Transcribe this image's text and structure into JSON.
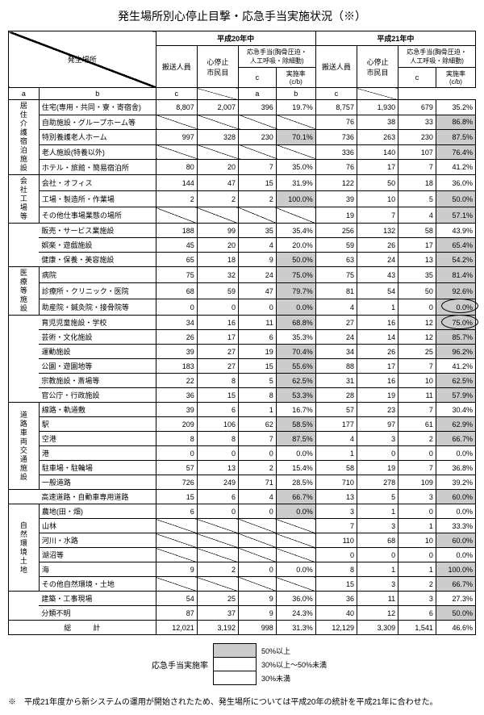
{
  "title": "発生場所別心停止目撃・応急手当実施状況（※）",
  "periods": [
    "平成20年中",
    "平成21年中"
  ],
  "subheads": {
    "a": "搬送人員",
    "b": "心停止\n市民目",
    "c": "応急手当(胸骨圧迫・\n人工呼吸・除細動)",
    "rate": "実施率\n(c/b)"
  },
  "labels": {
    "a": "a",
    "b": "b",
    "c": "c"
  },
  "loc_header": "発生場所",
  "total_label": "総　　　計",
  "legend_title": "応急手当実施率",
  "legend": [
    {
      "label": "50%以上",
      "fill": "#ccc"
    },
    {
      "label": "30%以上～50%未満",
      "fill": "#fff"
    },
    {
      "label": "30%未満",
      "fill": "#fff"
    }
  ],
  "footnote": "※　平成21年度から新システムの運用が開始されたため、発生場所については平成20年の統計を平成21年に合わせた。",
  "groups": [
    {
      "cat": "居住\n介護\n宿泊施設",
      "rows": [
        {
          "name": "住宅(専用・共同・寮・寄宿舎)",
          "y20": [
            8807,
            2007,
            396,
            19.7,
            false
          ],
          "y21": [
            8757,
            1930,
            679,
            35.2,
            false
          ]
        },
        {
          "name": "自助施設・グループホーム等",
          "y20": null,
          "y21": [
            76,
            38,
            33,
            86.8,
            true
          ]
        },
        {
          "name": "特別養護老人ホーム",
          "y20": [
            997,
            328,
            230,
            70.1,
            true
          ],
          "y21": [
            736,
            263,
            230,
            87.5,
            true
          ]
        },
        {
          "name": "老人施設(特養以外)",
          "y20": null,
          "y21": [
            336,
            140,
            107,
            76.4,
            true
          ]
        },
        {
          "name": "ホテル・旅館・簡易宿泊所",
          "y20": [
            80,
            20,
            7,
            35.0,
            false
          ],
          "y21": [
            76,
            17,
            7,
            41.2,
            false
          ]
        }
      ]
    },
    {
      "cat": "会社\n工場等",
      "rows": [
        {
          "name": "会社・オフィス",
          "y20": [
            144,
            47,
            15,
            31.9,
            false
          ],
          "y21": [
            122,
            50,
            18,
            36.0,
            false
          ]
        },
        {
          "name": "工場・製造所・作業場",
          "y20": [
            2,
            2,
            2,
            100.0,
            true
          ],
          "y21": [
            39,
            10,
            5,
            50.0,
            true
          ]
        },
        {
          "name": "その他仕事場業態の場所",
          "y20": null,
          "y21": [
            19,
            7,
            4,
            57.1,
            true
          ]
        }
      ]
    },
    {
      "cat": null,
      "rows": [
        {
          "name": "販売・サービス業施設",
          "y20": [
            188,
            99,
            35,
            35.4,
            false
          ],
          "y21": [
            256,
            132,
            58,
            43.9,
            false
          ]
        },
        {
          "name": "娯楽・遊戯施設",
          "y20": [
            45,
            20,
            4,
            20.0,
            false
          ],
          "y21": [
            59,
            26,
            17,
            65.4,
            true
          ]
        },
        {
          "name": "健康・保養・美容施設",
          "y20": [
            65,
            18,
            9,
            50.0,
            true
          ],
          "y21": [
            63,
            24,
            13,
            54.2,
            true
          ]
        }
      ]
    },
    {
      "cat": "医療等\n施設",
      "rows": [
        {
          "name": "病院",
          "y20": [
            75,
            32,
            24,
            75.0,
            true
          ],
          "y21": [
            75,
            43,
            35,
            81.4,
            true
          ]
        },
        {
          "name": "診療所・クリニック・医院",
          "y20": [
            68,
            59,
            47,
            79.7,
            true
          ],
          "y21": [
            81,
            54,
            50,
            92.6,
            true
          ]
        },
        {
          "name": "助産院・鍼灸院・接骨院等",
          "y20": [
            0,
            0,
            0,
            0.0,
            true
          ],
          "y21": [
            4,
            1,
            0,
            0.0,
            true
          ],
          "circled": true
        }
      ]
    },
    {
      "cat": null,
      "rows": [
        {
          "name": "育児児童施設・学校",
          "y20": [
            34,
            16,
            11,
            68.8,
            true
          ],
          "y21": [
            27,
            16,
            12,
            75.0,
            true
          ],
          "circled": true
        },
        {
          "name": "芸術・文化施設",
          "y20": [
            26,
            17,
            6,
            35.3,
            false
          ],
          "y21": [
            24,
            14,
            12,
            85.7,
            true
          ]
        },
        {
          "name": "運動施設",
          "y20": [
            39,
            27,
            19,
            70.4,
            true
          ],
          "y21": [
            34,
            26,
            25,
            96.2,
            true
          ]
        },
        {
          "name": "公園・遊園地等",
          "y20": [
            183,
            27,
            15,
            55.6,
            true
          ],
          "y21": [
            88,
            17,
            7,
            41.2,
            false
          ]
        },
        {
          "name": "宗教施設・斎場等",
          "y20": [
            22,
            8,
            5,
            62.5,
            true
          ],
          "y21": [
            31,
            16,
            10,
            62.5,
            true
          ]
        },
        {
          "name": "官公庁・行政施設",
          "y20": [
            36,
            15,
            8,
            53.3,
            true
          ],
          "y21": [
            28,
            19,
            11,
            57.9,
            true
          ]
        }
      ]
    },
    {
      "cat": "道路\n車両\n交通施設",
      "rows": [
        {
          "name": "線路・軌道敷",
          "y20": [
            39,
            6,
            1,
            16.7,
            false
          ],
          "y21": [
            57,
            23,
            7,
            30.4,
            false
          ]
        },
        {
          "name": "駅",
          "y20": [
            209,
            106,
            62,
            58.5,
            true
          ],
          "y21": [
            177,
            97,
            61,
            62.9,
            true
          ]
        },
        {
          "name": "空港",
          "y20": [
            8,
            8,
            7,
            87.5,
            true
          ],
          "y21": [
            4,
            3,
            2,
            66.7,
            true
          ]
        },
        {
          "name": "港",
          "y20": [
            0,
            0,
            0,
            0.0,
            false
          ],
          "y21": [
            1,
            0,
            0,
            0.0,
            false
          ]
        },
        {
          "name": "駐車場・駐輪場",
          "y20": [
            57,
            13,
            2,
            15.4,
            false
          ],
          "y21": [
            58,
            19,
            7,
            36.8,
            false
          ]
        },
        {
          "name": "一般道路",
          "y20": [
            726,
            249,
            71,
            28.5,
            false
          ],
          "y21": [
            710,
            278,
            109,
            39.2,
            false
          ]
        }
      ]
    },
    {
      "cat": null,
      "rows": [
        {
          "name": "高速道路・自動車専用道路",
          "y20": [
            15,
            6,
            4,
            66.7,
            true
          ],
          "y21": [
            13,
            5,
            3,
            60.0,
            true
          ]
        }
      ]
    },
    {
      "cat": "自然環境\n土地",
      "rows": [
        {
          "name": "農地(田・畑)",
          "y20": [
            6,
            0,
            0,
            0.0,
            true
          ],
          "y21": [
            3,
            1,
            0,
            0.0,
            false
          ]
        },
        {
          "name": "山林",
          "y20": null,
          "y21": [
            7,
            3,
            1,
            33.3,
            false
          ]
        },
        {
          "name": "河川・水路",
          "y20": null,
          "y21": [
            110,
            68,
            10,
            60.0,
            true
          ]
        },
        {
          "name": "湖沼等",
          "y20": null,
          "y21": [
            0,
            0,
            0,
            0.0,
            false
          ]
        },
        {
          "name": "海",
          "y20": [
            9,
            2,
            0,
            0.0,
            false
          ],
          "y21": [
            8,
            1,
            1,
            100.0,
            true
          ]
        },
        {
          "name": "その他自然環境・土地",
          "y20": null,
          "y21": [
            15,
            3,
            2,
            66.7,
            true
          ]
        }
      ]
    },
    {
      "cat": null,
      "rows": [
        {
          "name": "建築・工事現場",
          "y20": [
            54,
            25,
            9,
            36.0,
            false
          ],
          "y21": [
            36,
            11,
            3,
            27.3,
            false
          ]
        },
        {
          "name": "分類不明",
          "y20": [
            87,
            37,
            9,
            24.3,
            false
          ],
          "y21": [
            40,
            12,
            6,
            50.0,
            true
          ]
        }
      ]
    }
  ],
  "total": {
    "y20": [
      12021,
      3192,
      998,
      31.3
    ],
    "y21": [
      12129,
      3309,
      1541,
      46.6
    ]
  },
  "colwidths": {
    "cat": 34,
    "name": 130,
    "a": 46,
    "b": 46,
    "c": 42,
    "r": 44
  }
}
